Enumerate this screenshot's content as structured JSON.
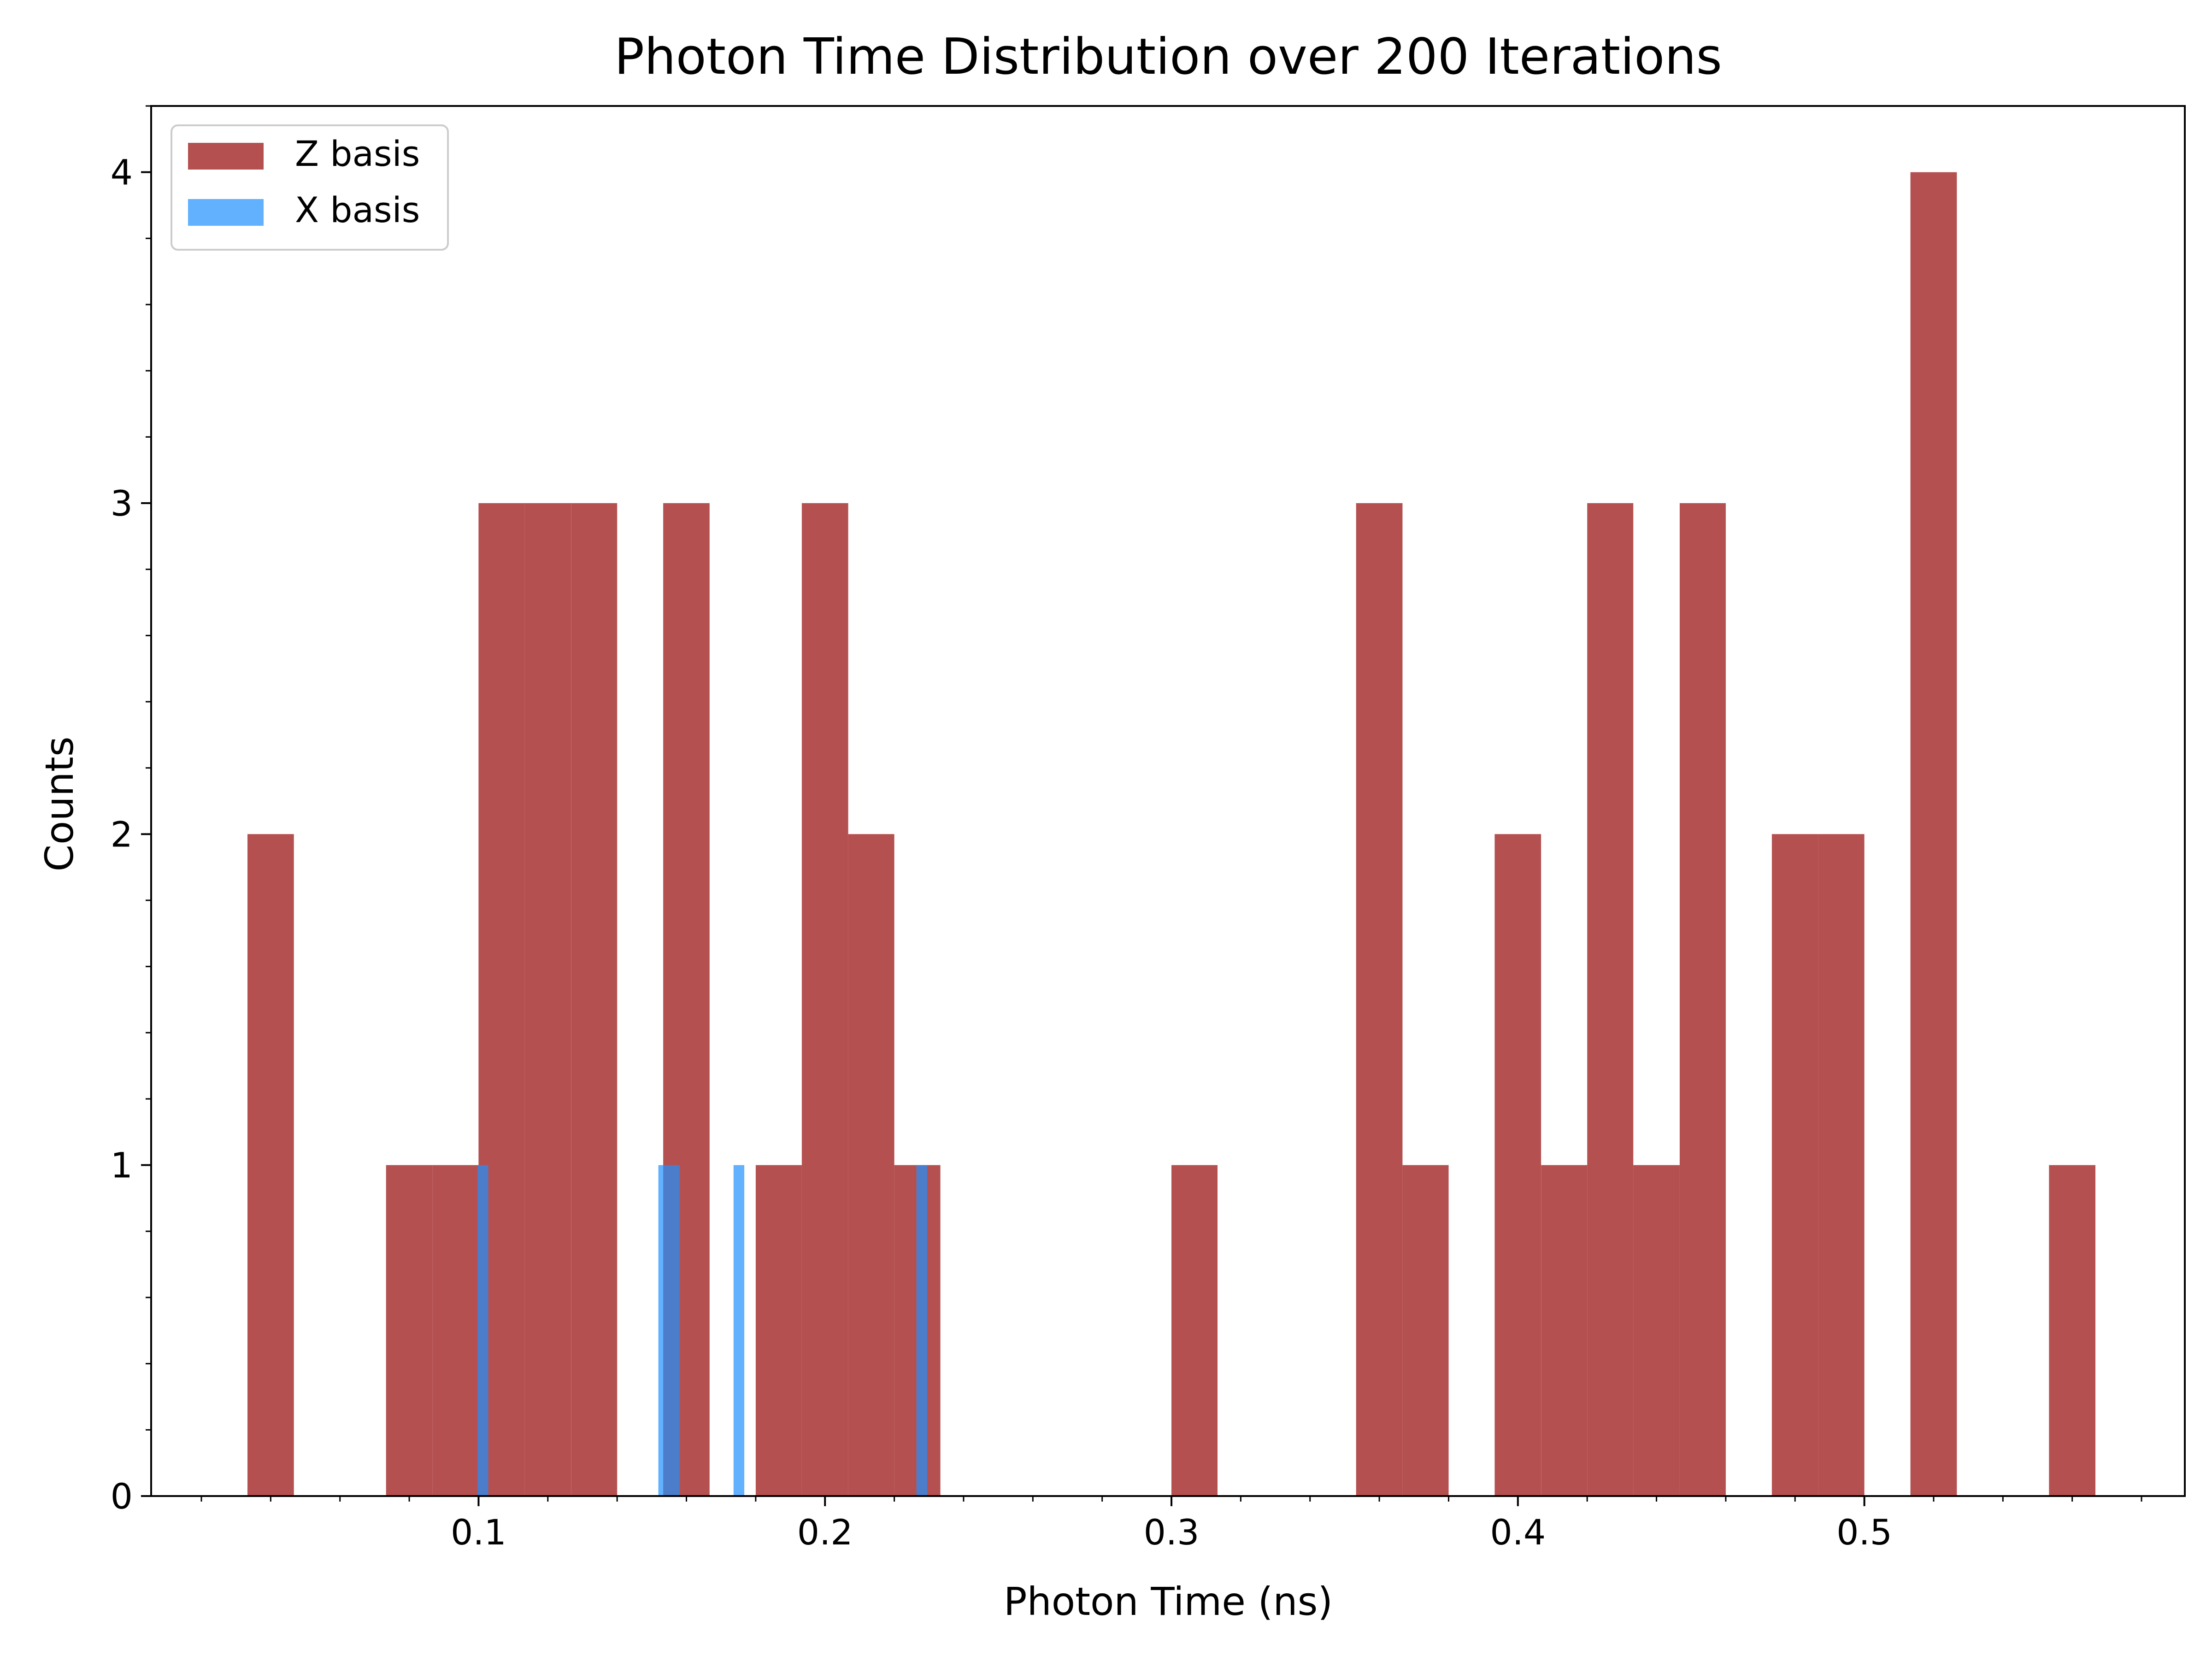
{
  "chart_data": {
    "type": "bar",
    "title": "Photon Time Distribution over 200 Iterations",
    "xlabel": "Photon Time (ns)",
    "ylabel": "Counts",
    "xlim": [
      0.0055,
      0.5925
    ],
    "ylim": [
      0,
      4.2
    ],
    "x_ticks": [
      {
        "value": 0.1,
        "label": "0.1"
      },
      {
        "value": 0.2,
        "label": "0.2"
      },
      {
        "value": 0.3,
        "label": "0.3"
      },
      {
        "value": 0.4,
        "label": "0.4"
      },
      {
        "value": 0.5,
        "label": "0.5"
      }
    ],
    "x_minor_tick_step": 0.02,
    "y_ticks": [
      {
        "value": 0,
        "label": "0"
      },
      {
        "value": 1,
        "label": "1"
      },
      {
        "value": 2,
        "label": "2"
      },
      {
        "value": 3,
        "label": "3"
      },
      {
        "value": 4,
        "label": "4"
      }
    ],
    "y_minor_tick_step": 0.2,
    "grid": false,
    "legend": {
      "placement": "top-left"
    },
    "series": [
      {
        "name": "Z basis",
        "color": "#a52a2a",
        "opacity": 0.82,
        "bins": [
          {
            "x0": 0.0333,
            "x1": 0.0467,
            "count": 2
          },
          {
            "x0": 0.0733,
            "x1": 0.0867,
            "count": 1
          },
          {
            "x0": 0.0867,
            "x1": 0.1,
            "count": 1
          },
          {
            "x0": 0.1,
            "x1": 0.1133,
            "count": 3
          },
          {
            "x0": 0.1133,
            "x1": 0.1267,
            "count": 3
          },
          {
            "x0": 0.1267,
            "x1": 0.14,
            "count": 3
          },
          {
            "x0": 0.1533,
            "x1": 0.1667,
            "count": 3
          },
          {
            "x0": 0.18,
            "x1": 0.1933,
            "count": 1
          },
          {
            "x0": 0.1933,
            "x1": 0.2067,
            "count": 3
          },
          {
            "x0": 0.2067,
            "x1": 0.22,
            "count": 2
          },
          {
            "x0": 0.22,
            "x1": 0.2333,
            "count": 1
          },
          {
            "x0": 0.3,
            "x1": 0.3133,
            "count": 1
          },
          {
            "x0": 0.3533,
            "x1": 0.3667,
            "count": 3
          },
          {
            "x0": 0.3667,
            "x1": 0.38,
            "count": 1
          },
          {
            "x0": 0.3933,
            "x1": 0.4067,
            "count": 2
          },
          {
            "x0": 0.4067,
            "x1": 0.42,
            "count": 1
          },
          {
            "x0": 0.42,
            "x1": 0.4333,
            "count": 3
          },
          {
            "x0": 0.4333,
            "x1": 0.4467,
            "count": 1
          },
          {
            "x0": 0.4467,
            "x1": 0.46,
            "count": 3
          },
          {
            "x0": 0.4733,
            "x1": 0.4867,
            "count": 2
          },
          {
            "x0": 0.4867,
            "x1": 0.5,
            "count": 2
          },
          {
            "x0": 0.5133,
            "x1": 0.5267,
            "count": 4
          },
          {
            "x0": 0.5533,
            "x1": 0.5667,
            "count": 1
          }
        ]
      },
      {
        "name": "X basis",
        "color": "#1e90ff",
        "opacity": 0.7,
        "bins": [
          {
            "x0": 0.0997,
            "x1": 0.1028,
            "count": 1
          },
          {
            "x0": 0.1519,
            "x1": 0.155,
            "count": 1
          },
          {
            "x0": 0.155,
            "x1": 0.1581,
            "count": 1
          },
          {
            "x0": 0.1736,
            "x1": 0.1767,
            "count": 1
          },
          {
            "x0": 0.2264,
            "x1": 0.2295,
            "count": 1
          }
        ]
      }
    ]
  }
}
